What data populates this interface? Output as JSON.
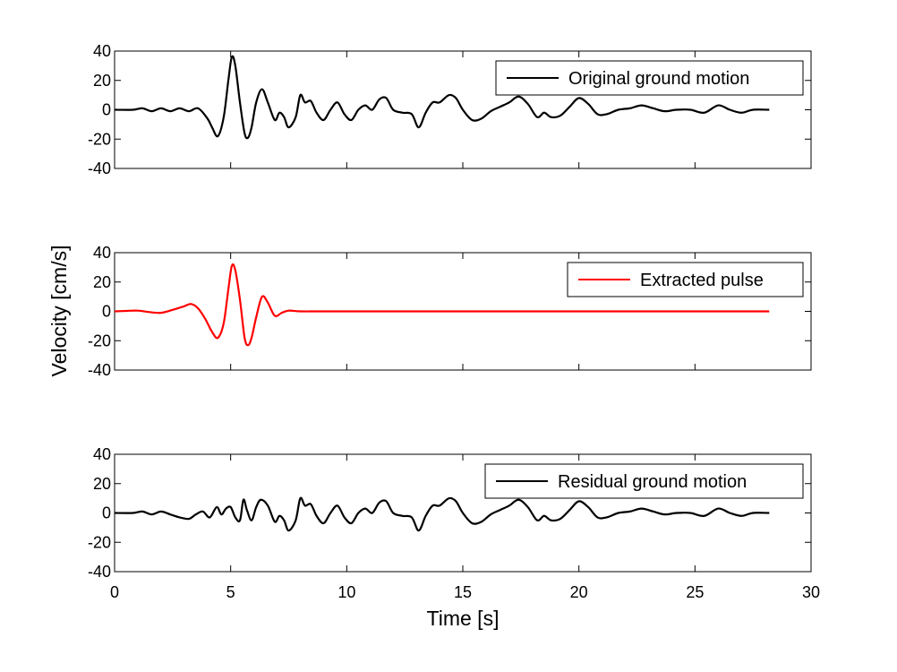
{
  "figure": {
    "ylabel": "Velocity [cm/s]",
    "xlabel": "Time [s]"
  },
  "chart_data": [
    {
      "type": "line",
      "xlim": [
        0,
        30
      ],
      "ylim": [
        -40,
        40
      ],
      "xticks": [
        0,
        5,
        10,
        15,
        20,
        25,
        30
      ],
      "yticks": [
        40,
        20,
        0,
        -20,
        -40
      ],
      "legend_position": "top-right",
      "grid": false,
      "series": [
        {
          "name": "Original ground motion",
          "color": "#000000",
          "x": [
            0,
            0.8,
            1.2,
            1.6,
            2.0,
            2.4,
            2.8,
            3.2,
            3.6,
            4.0,
            4.2,
            4.45,
            4.7,
            4.9,
            5.05,
            5.2,
            5.4,
            5.6,
            5.75,
            5.9,
            6.1,
            6.35,
            6.6,
            6.9,
            7.1,
            7.3,
            7.5,
            7.8,
            8.0,
            8.2,
            8.45,
            8.7,
            9.0,
            9.3,
            9.6,
            9.9,
            10.2,
            10.5,
            10.8,
            11.1,
            11.4,
            11.7,
            12.0,
            12.4,
            12.8,
            13.1,
            13.4,
            13.7,
            14.0,
            14.4,
            14.7,
            15.0,
            15.4,
            15.8,
            16.2,
            16.6,
            17.0,
            17.4,
            17.8,
            18.2,
            18.5,
            18.8,
            19.2,
            19.6,
            20.0,
            20.4,
            20.8,
            21.2,
            21.7,
            22.2,
            22.7,
            23.2,
            23.7,
            24.2,
            24.8,
            25.4,
            26.0,
            26.5,
            27.0,
            27.5,
            28.2
          ],
          "y": [
            0,
            0,
            1,
            -1,
            1,
            -1,
            1,
            -1,
            1,
            -6,
            -12,
            -18,
            -5,
            20,
            36,
            30,
            5,
            -16,
            -19,
            -12,
            5,
            14,
            5,
            -7,
            -2,
            -5,
            -12,
            -5,
            10,
            5,
            6,
            -2,
            -7,
            0,
            5,
            -3,
            -7,
            0,
            3,
            0,
            7,
            8,
            0,
            -2,
            -3,
            -12,
            -2,
            5,
            5,
            10,
            8,
            0,
            -7,
            -6,
            -1,
            2,
            5,
            9,
            4,
            -5,
            -2,
            -5,
            -4,
            2,
            8,
            4,
            -3,
            -3,
            0,
            1,
            3,
            1,
            -1,
            0,
            0,
            -2,
            3,
            0,
            -2,
            0,
            0
          ]
        },
        {
          "name": "Extracted pulse",
          "color": "#ff0000",
          "x": [
            0,
            0.5,
            1.0,
            1.5,
            2.0,
            2.5,
            3.0,
            3.3,
            3.6,
            3.9,
            4.2,
            4.45,
            4.7,
            4.9,
            5.05,
            5.2,
            5.4,
            5.6,
            5.75,
            5.9,
            6.1,
            6.35,
            6.6,
            6.9,
            7.2,
            7.5,
            8.0,
            9.0,
            10.0,
            28.2
          ],
          "y": [
            0,
            0.3,
            0.5,
            -0.5,
            -1,
            1,
            3.5,
            5,
            2,
            -5,
            -14,
            -18,
            -8,
            15,
            31,
            28,
            8,
            -18,
            -23,
            -18,
            -4,
            10,
            6,
            -3,
            -1,
            0.5,
            0,
            0,
            0,
            0
          ]
        },
        {
          "name": "Residual ground motion",
          "color": "#000000",
          "x": [
            0,
            0.8,
            1.2,
            1.6,
            2.0,
            2.4,
            2.8,
            3.2,
            3.5,
            3.8,
            4.1,
            4.4,
            4.6,
            4.8,
            5.0,
            5.2,
            5.4,
            5.55,
            5.7,
            5.9,
            6.1,
            6.3,
            6.6,
            6.9,
            7.1,
            7.3,
            7.5,
            7.8,
            8.0,
            8.2,
            8.45,
            8.7,
            9.0,
            9.3,
            9.6,
            9.9,
            10.2,
            10.5,
            10.8,
            11.1,
            11.4,
            11.7,
            12.0,
            12.4,
            12.8,
            13.1,
            13.4,
            13.7,
            14.0,
            14.4,
            14.7,
            15.0,
            15.4,
            15.8,
            16.2,
            16.6,
            17.0,
            17.4,
            17.8,
            18.2,
            18.5,
            18.8,
            19.2,
            19.6,
            20.0,
            20.4,
            20.8,
            21.2,
            21.7,
            22.2,
            22.7,
            23.2,
            23.7,
            24.2,
            24.8,
            25.4,
            26.0,
            26.5,
            27.0,
            27.5,
            28.2
          ],
          "y": [
            0,
            0,
            1,
            -1,
            1,
            -1,
            -3,
            -4,
            -1,
            1,
            -3,
            4,
            -1,
            3,
            4,
            -3,
            -5,
            9,
            2,
            -5,
            4,
            9,
            5,
            -6,
            -2,
            -5,
            -12,
            -5,
            10,
            5,
            6,
            -2,
            -7,
            0,
            5,
            -3,
            -7,
            0,
            3,
            0,
            7,
            8,
            0,
            -2,
            -3,
            -12,
            -2,
            5,
            5,
            10,
            8,
            0,
            -7,
            -6,
            -1,
            2,
            5,
            9,
            4,
            -5,
            -2,
            -5,
            -4,
            2,
            8,
            4,
            -3,
            -3,
            0,
            1,
            3,
            1,
            -1,
            0,
            0,
            -2,
            3,
            0,
            -2,
            0,
            0
          ]
        }
      ]
    }
  ]
}
